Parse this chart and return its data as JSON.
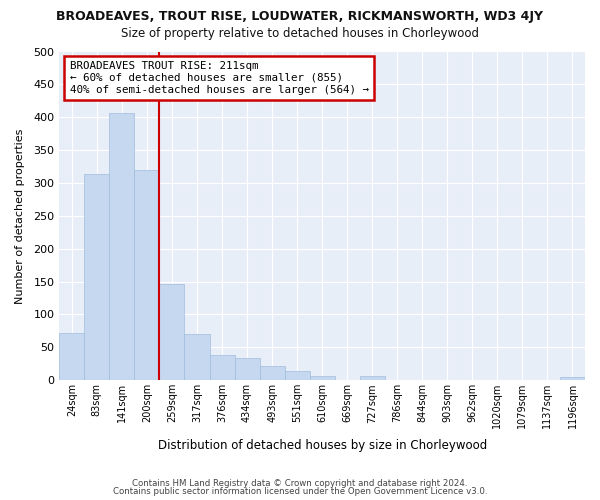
{
  "title": "BROADEAVES, TROUT RISE, LOUDWATER, RICKMANSWORTH, WD3 4JY",
  "subtitle": "Size of property relative to detached houses in Chorleywood",
  "xlabel": "Distribution of detached houses by size in Chorleywood",
  "ylabel": "Number of detached properties",
  "categories": [
    "24sqm",
    "83sqm",
    "141sqm",
    "200sqm",
    "259sqm",
    "317sqm",
    "376sqm",
    "434sqm",
    "493sqm",
    "551sqm",
    "610sqm",
    "669sqm",
    "727sqm",
    "786sqm",
    "844sqm",
    "903sqm",
    "962sqm",
    "1020sqm",
    "1079sqm",
    "1137sqm",
    "1196sqm"
  ],
  "values": [
    72,
    313,
    407,
    320,
    147,
    70,
    38,
    34,
    22,
    14,
    7,
    0,
    6,
    0,
    0,
    0,
    0,
    0,
    0,
    0,
    5
  ],
  "bar_color": "#c5d8f0",
  "bar_edge_color": "#a0bedd",
  "property_line_label": "BROADEAVES TROUT RISE: 211sqm",
  "annotation_line1": "← 60% of detached houses are smaller (855)",
  "annotation_line2": "40% of semi-detached houses are larger (564) →",
  "annotation_box_color": "#ffffff",
  "annotation_box_edge": "#cc0000",
  "vline_color": "#cc0000",
  "vline_x": 3.5,
  "footer1": "Contains HM Land Registry data © Crown copyright and database right 2024.",
  "footer2": "Contains public sector information licensed under the Open Government Licence v3.0.",
  "bg_color": "#ffffff",
  "plot_bg_color": "#e8eef8",
  "grid_color": "#ffffff",
  "ylim": [
    0,
    500
  ],
  "yticks": [
    0,
    50,
    100,
    150,
    200,
    250,
    300,
    350,
    400,
    450,
    500
  ]
}
